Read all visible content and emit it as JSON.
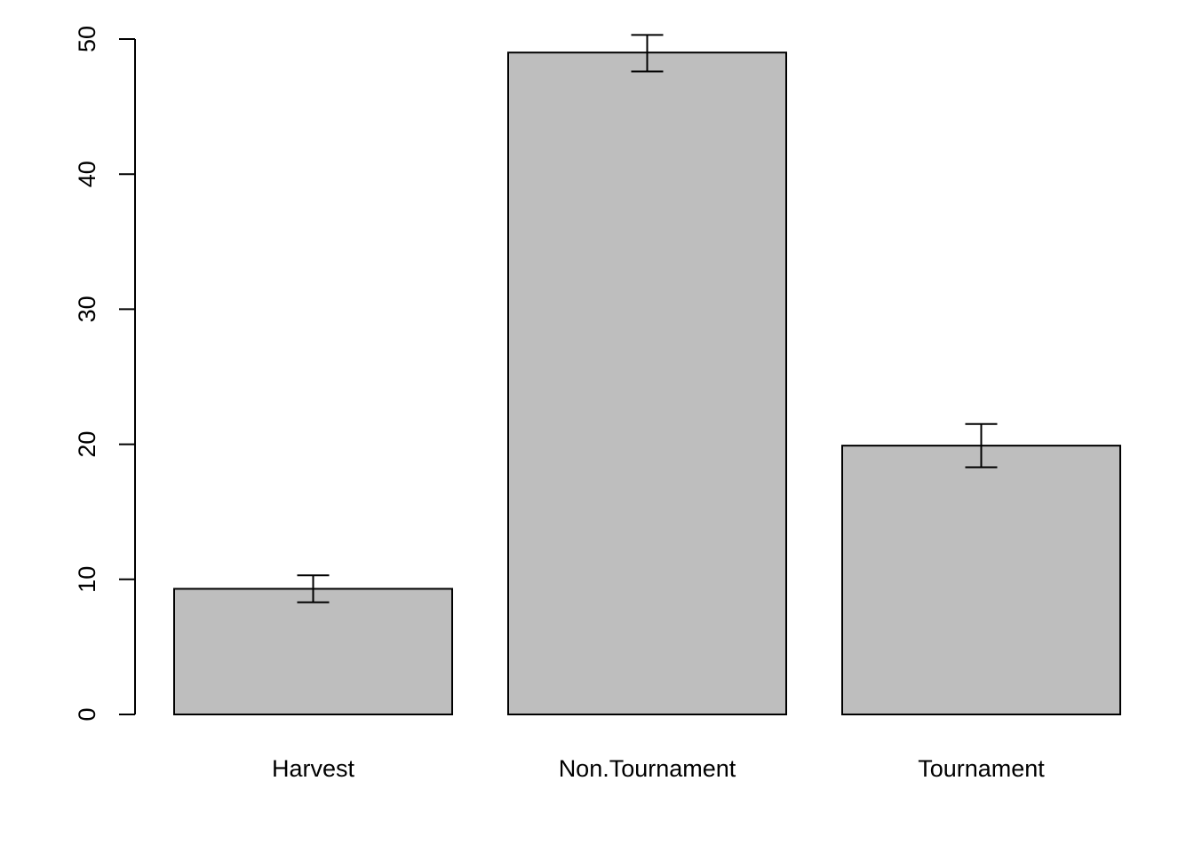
{
  "chart_data": {
    "type": "bar",
    "title": "",
    "xlabel": "",
    "ylabel": "",
    "categories": [
      "Harvest",
      "Non.Tournament",
      "Tournament"
    ],
    "values": [
      9.3,
      49.0,
      19.9
    ],
    "error_low": [
      8.3,
      47.6,
      18.3
    ],
    "error_high": [
      10.3,
      50.3,
      21.5
    ],
    "ylim": [
      0,
      50
    ],
    "yticks": [
      0,
      10,
      20,
      30,
      40,
      50
    ],
    "grid": false,
    "legend": "none",
    "colors": {
      "bar_fill": "#bebebe",
      "bar_stroke": "#000000",
      "axis": "#000000"
    }
  }
}
